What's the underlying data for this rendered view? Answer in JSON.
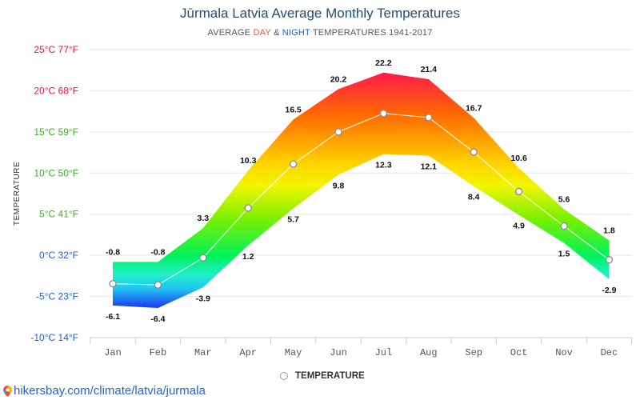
{
  "header": {
    "title": "Jūrmala Latvia Average Monthly Temperatures",
    "subtitle_prefix": "AVERAGE ",
    "subtitle_day": "DAY",
    "subtitle_amp": " & ",
    "subtitle_night": "NIGHT",
    "subtitle_suffix": " TEMPERATURES 1941-2017"
  },
  "legend": {
    "label": "TEMPERATURE"
  },
  "source": {
    "text": "hikersbay.com/climate/latvia/jurmala"
  },
  "colors": {
    "day": "#e8611a",
    "night": "#1f5fcf",
    "title": "#1f4e79",
    "source": "#2a62c9"
  },
  "chart_data": {
    "type": "area",
    "title": "Jūrmala Latvia Average Monthly Temperatures",
    "ylabel": "TEMPERATURE",
    "categories": [
      "Jan",
      "Feb",
      "Mar",
      "Apr",
      "May",
      "Jun",
      "Jul",
      "Aug",
      "Sep",
      "Oct",
      "Nov",
      "Dec"
    ],
    "series": [
      {
        "values": [
          -0.8,
          -0.8,
          3.3,
          10.3,
          16.5,
          20.2,
          22.2,
          21.4,
          16.7,
          10.6,
          5.6,
          1.8
        ]
      },
      {
        "values": [
          -6.1,
          -6.4,
          -3.9,
          1.2,
          5.7,
          9.8,
          12.3,
          12.1,
          8.4,
          4.9,
          1.5,
          -2.9
        ]
      },
      {
        "name": "TEMPERATURE",
        "values": [
          -3.45,
          -3.6,
          -0.3,
          5.75,
          11.1,
          15.0,
          17.25,
          16.75,
          12.55,
          7.75,
          3.55,
          -0.55
        ]
      }
    ],
    "ylim": [
      -10,
      25
    ],
    "yticks": [
      {
        "value": 25,
        "label": "25°C 77°F",
        "color": "#e8144d"
      },
      {
        "value": 20,
        "label": "20°C 68°F",
        "color": "#e8144d"
      },
      {
        "value": 15,
        "label": "15°C 59°F",
        "color": "#3fae2a"
      },
      {
        "value": 10,
        "label": "10°C 50°F",
        "color": "#3fae2a"
      },
      {
        "value": 5,
        "label": "5°C 41°F",
        "color": "#3fae2a"
      },
      {
        "value": 0,
        "label": "0°C 32°F",
        "color": "#1f5fcf"
      },
      {
        "value": -5,
        "label": "-5°C 23°F",
        "color": "#1f5fcf"
      },
      {
        "value": -10,
        "label": "-10°C 14°F",
        "color": "#1f5fcf"
      }
    ],
    "grid": true,
    "legend_position": "bottom-center"
  }
}
